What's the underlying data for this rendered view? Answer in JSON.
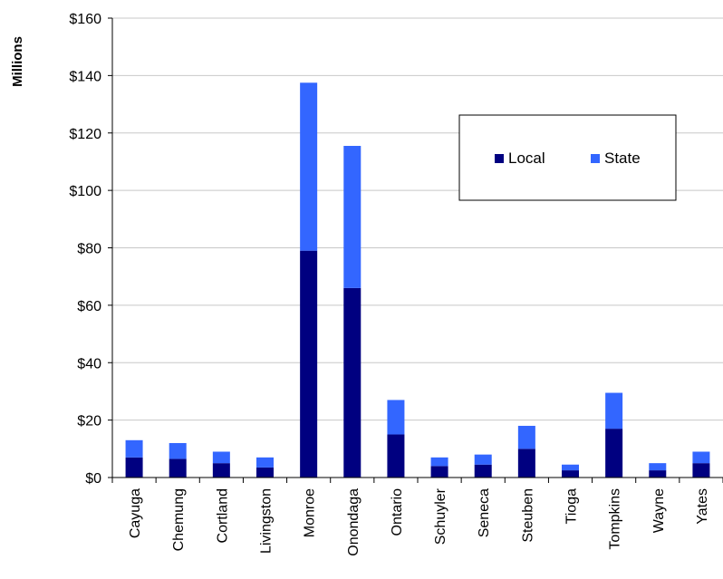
{
  "chart_data": {
    "type": "bar",
    "stacked": true,
    "title": "",
    "xlabel": "",
    "ylabel": "Millions",
    "ylim": [
      0,
      160
    ],
    "y_ticks": [
      0,
      20,
      40,
      60,
      80,
      100,
      120,
      140,
      160
    ],
    "y_tick_labels": [
      "$0",
      "$20",
      "$40",
      "$60",
      "$80",
      "$100",
      "$120",
      "$140",
      "$160"
    ],
    "grid": true,
    "legend_position": "right",
    "categories": [
      "Cayuga",
      "Chemung",
      "Cortland",
      "Livingston",
      "Monroe",
      "Onondaga",
      "Ontario",
      "Schuyler",
      "Seneca",
      "Steuben",
      "Tioga",
      "Tompkins",
      "Wayne",
      "Yates"
    ],
    "series": [
      {
        "name": "Local",
        "color": "#000080",
        "values": [
          7,
          6.5,
          5,
          3.5,
          79,
          66,
          15,
          4,
          4.5,
          10,
          2.5,
          17,
          2.5,
          5
        ]
      },
      {
        "name": "State",
        "color": "#3366ff",
        "values": [
          6,
          5.5,
          4,
          3.5,
          58.5,
          49.5,
          12,
          3,
          3.5,
          8,
          2,
          12.5,
          2.5,
          4
        ]
      }
    ]
  }
}
